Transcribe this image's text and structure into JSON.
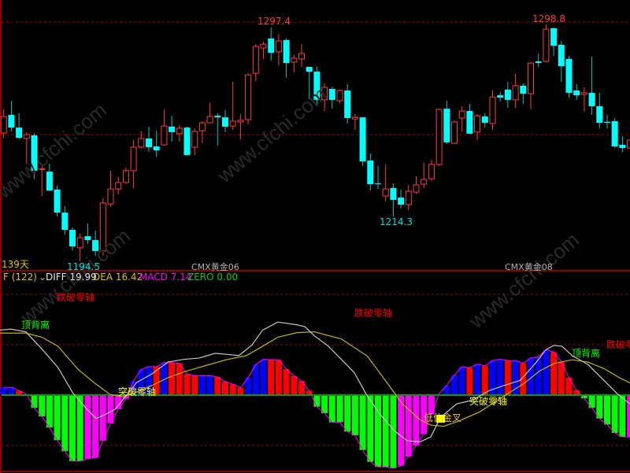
{
  "watermark": "www.cfchi.com",
  "price_panel": {
    "days_label": "139天",
    "contract_labels": [
      "CMX黄金06",
      "CMX黄金08"
    ],
    "extreme_labels": [
      {
        "text": "1297.4",
        "candle": 35,
        "kind": "high"
      },
      {
        "text": "1298.8",
        "candle": 71,
        "kind": "high"
      },
      {
        "text": "1214.3",
        "candle": 51,
        "kind": "low"
      },
      {
        "text": "1194.5",
        "candle": 10,
        "kind": "low"
      }
    ]
  },
  "indicator_header": {
    "name": "F (122)",
    "diff": "DIFF 19.99",
    "dea": "DEA 16.42",
    "macd": "MACD 7.14",
    "zero": "ZERO 0.00"
  },
  "annotations": {
    "break_down_zero": "跌破零轴",
    "top_divergence": "顶背离",
    "break_up_zero": "突破零轴",
    "low_golden_cross": "低位金叉"
  },
  "colors": {
    "up": "#ff3b3b",
    "down": "#00ffff",
    "hist_red": "#ff0000",
    "hist_blue": "#0000ff",
    "hist_green": "#00ff00",
    "hist_magenta": "#ff00ff",
    "diff": "#c8c8c8",
    "dea": "#c8b400",
    "zero": "#00a000",
    "grid": "#a00000",
    "frame": "#8b0000"
  },
  "chart_data": [
    {
      "type": "candlestick",
      "ohlc_order": [
        "open",
        "high",
        "low",
        "close"
      ],
      "ylim": [
        1190.8,
        1309.5
      ],
      "grid_lines": [
        1299.8,
        1250.3
      ],
      "candles": [
        [
          1251.0,
          1261.4,
          1248.9,
          1258.3
        ],
        [
          1259.0,
          1265.2,
          1251.7,
          1253.4
        ],
        [
          1253.4,
          1259.7,
          1248.2,
          1248.9
        ],
        [
          1248.6,
          1251.4,
          1237.5,
          1250.3
        ],
        [
          1250.0,
          1251.0,
          1230.9,
          1234.4
        ],
        [
          1235.1,
          1236.8,
          1223.3,
          1235.3
        ],
        [
          1234.0,
          1237.5,
          1225.4,
          1225.7
        ],
        [
          1226.1,
          1227.8,
          1214.3,
          1216.0
        ],
        [
          1216.0,
          1218.8,
          1206.3,
          1208.4
        ],
        [
          1208.4,
          1209.5,
          1199.4,
          1201.1
        ],
        [
          1200.5,
          1206.7,
          1194.5,
          1205.0
        ],
        [
          1205.6,
          1211.2,
          1202.2,
          1203.9
        ],
        [
          1203.9,
          1208.1,
          1197.0,
          1199.1
        ],
        [
          1199.1,
          1222.3,
          1197.0,
          1220.2
        ],
        [
          1219.8,
          1234.4,
          1218.5,
          1226.4
        ],
        [
          1226.4,
          1231.6,
          1224.0,
          1229.2
        ],
        [
          1229.2,
          1235.8,
          1228.8,
          1234.4
        ],
        [
          1234.4,
          1247.9,
          1226.8,
          1244.8
        ],
        [
          1244.8,
          1251.7,
          1244.1,
          1248.6
        ],
        [
          1248.6,
          1253.8,
          1242.7,
          1244.8
        ],
        [
          1245.1,
          1252.0,
          1240.6,
          1243.4
        ],
        [
          1245.8,
          1261.4,
          1245.5,
          1254.1
        ],
        [
          1253.8,
          1258.6,
          1247.2,
          1251.4
        ],
        [
          1250.7,
          1254.5,
          1247.2,
          1253.1
        ],
        [
          1253.4,
          1253.8,
          1241.3,
          1241.3
        ],
        [
          1244.8,
          1253.1,
          1241.3,
          1251.7
        ],
        [
          1252.0,
          1256.2,
          1246.5,
          1255.5
        ],
        [
          1255.5,
          1264.2,
          1255.5,
          1258.3
        ],
        [
          1258.6,
          1259.7,
          1245.5,
          1257.9
        ],
        [
          1257.9,
          1261.1,
          1251.4,
          1253.8
        ],
        [
          1254.1,
          1273.5,
          1252.4,
          1256.2
        ],
        [
          1255.9,
          1259.3,
          1248.2,
          1256.6
        ],
        [
          1256.9,
          1277.3,
          1254.8,
          1276.6
        ],
        [
          1277.3,
          1290.1,
          1273.9,
          1289.1
        ],
        [
          1288.4,
          1291.2,
          1283.6,
          1290.1
        ],
        [
          1292.6,
          1297.4,
          1282.9,
          1286.3
        ],
        [
          1286.7,
          1294.6,
          1280.8,
          1291.5
        ],
        [
          1291.9,
          1292.6,
          1275.3,
          1281.8
        ],
        [
          1282.2,
          1285.3,
          1277.7,
          1283.9
        ],
        [
          1283.6,
          1290.1,
          1280.1,
          1286.0
        ],
        [
          1280.1,
          1280.1,
          1265.9,
          1278.0
        ],
        [
          1278.0,
          1280.1,
          1262.8,
          1265.6
        ],
        [
          1265.6,
          1272.8,
          1260.7,
          1271.1
        ],
        [
          1270.4,
          1271.4,
          1261.7,
          1265.6
        ],
        [
          1265.2,
          1270.1,
          1264.2,
          1269.7
        ],
        [
          1269.7,
          1272.5,
          1255.2,
          1257.6
        ],
        [
          1257.2,
          1259.3,
          1252.4,
          1257.9
        ],
        [
          1257.9,
          1257.9,
          1236.5,
          1238.5
        ],
        [
          1238.9,
          1242.0,
          1225.7,
          1228.5
        ],
        [
          1228.8,
          1236.5,
          1226.4,
          1228.5
        ],
        [
          1223.3,
          1237.2,
          1220.9,
          1226.4
        ],
        [
          1226.8,
          1228.8,
          1214.3,
          1221.6
        ],
        [
          1222.6,
          1226.1,
          1217.8,
          1219.5
        ],
        [
          1219.5,
          1228.2,
          1217.1,
          1225.4
        ],
        [
          1225.0,
          1232.0,
          1224.3,
          1228.2
        ],
        [
          1228.5,
          1237.9,
          1226.8,
          1230.6
        ],
        [
          1230.9,
          1239.2,
          1229.9,
          1237.2
        ],
        [
          1237.2,
          1261.7,
          1236.5,
          1261.4
        ],
        [
          1261.7,
          1265.2,
          1246.2,
          1246.9
        ],
        [
          1246.5,
          1256.6,
          1246.2,
          1255.9
        ],
        [
          1257.6,
          1262.8,
          1251.7,
          1260.7
        ],
        [
          1260.7,
          1263.8,
          1250.7,
          1250.7
        ],
        [
          1251.4,
          1259.3,
          1247.9,
          1258.6
        ],
        [
          1258.3,
          1259.7,
          1253.4,
          1255.5
        ],
        [
          1255.2,
          1269.7,
          1252.4,
          1266.9
        ],
        [
          1267.6,
          1269.0,
          1264.9,
          1266.6
        ],
        [
          1270.1,
          1273.5,
          1262.1,
          1265.6
        ],
        [
          1265.6,
          1277.0,
          1262.1,
          1271.8
        ],
        [
          1271.8,
          1272.8,
          1263.8,
          1268.3
        ],
        [
          1268.3,
          1282.2,
          1261.4,
          1281.8
        ],
        [
          1282.5,
          1286.0,
          1280.1,
          1281.8
        ],
        [
          1282.5,
          1298.8,
          1282.2,
          1296.7
        ],
        [
          1297.1,
          1297.4,
          1284.9,
          1289.4
        ],
        [
          1289.8,
          1291.5,
          1273.5,
          1280.4
        ],
        [
          1283.6,
          1284.9,
          1266.6,
          1268.7
        ],
        [
          1269.7,
          1272.5,
          1265.6,
          1267.6
        ],
        [
          1268.0,
          1271.1,
          1260.4,
          1268.7
        ],
        [
          1268.7,
          1284.6,
          1259.0,
          1262.8
        ],
        [
          1262.8,
          1268.7,
          1253.1,
          1255.5
        ],
        [
          1255.9,
          1259.0,
          1253.1,
          1255.5
        ],
        [
          1256.2,
          1257.6,
          1244.4,
          1245.1
        ],
        [
          1245.8,
          1249.6,
          1242.7,
          1244.4
        ],
        [
          1244.4,
          1247.9,
          1244.1,
          1247.9
        ]
      ]
    },
    {
      "type": "bar+line",
      "ylim": [
        -30,
        49
      ],
      "grid_lines": [
        40,
        20,
        -20
      ],
      "histogram": [
        3.1,
        3.1,
        1.7,
        0.3,
        -5.1,
        -8.5,
        -12.9,
        -17.9,
        -22.3,
        -26.2,
        -26.2,
        -25.2,
        -24.9,
        -18.1,
        -11.2,
        -5.6,
        -1.5,
        5.6,
        10.2,
        11.3,
        11.3,
        12.9,
        12.9,
        12.6,
        8.4,
        7.7,
        7.7,
        7.7,
        7.2,
        5.3,
        4.3,
        2.9,
        6.9,
        12.1,
        14.2,
        14.0,
        14.0,
        10.3,
        7.6,
        5.6,
        1.7,
        -4.6,
        -7.2,
        -10.8,
        -10.8,
        -14.5,
        -16.0,
        -21.8,
        -26.5,
        -28.5,
        -28.5,
        -29.1,
        -28.0,
        -24.4,
        -20.0,
        -15.5,
        -7.7,
        0.5,
        3.8,
        7.9,
        11.3,
        10.8,
        12.3,
        11.6,
        13.7,
        14.2,
        13.7,
        13.7,
        12.6,
        14.7,
        15.2,
        18.1,
        17.1,
        13.3,
        6.9,
        1.9,
        -1.3,
        -5.1,
        -9.3,
        -11.7,
        -15.0,
        -16.6,
        -16.6
      ],
      "histogram_colors": "BBRRGGGGGGGMMMMMMBBBRBRRRRBBRRRRBBBRRRRRRGGGGGGGGGGGMMMMMBBBBRBRBBRBRBBBRRRRGGGGGGM",
      "series": [
        {
          "name": "DIFF",
          "points": [
            [
              -0.5,
              25.8
            ],
            [
              0.9,
              26.2
            ],
            [
              2.9,
              25.1
            ],
            [
              5.0,
              18.3
            ],
            [
              7.1,
              11.0
            ],
            [
              9.1,
              0.6
            ],
            [
              10.9,
              -5.6
            ],
            [
              12.1,
              -9.3
            ],
            [
              13.3,
              -7.7
            ],
            [
              14.6,
              -5.6
            ],
            [
              15.7,
              -1.5
            ],
            [
              17.4,
              5.0
            ],
            [
              19.4,
              8.4
            ],
            [
              21.5,
              13.1
            ],
            [
              23.6,
              14.2
            ],
            [
              25.6,
              14.7
            ],
            [
              27.7,
              16.6
            ],
            [
              29.8,
              16.0
            ],
            [
              30.8,
              15.7
            ],
            [
              32.5,
              19.9
            ],
            [
              33.9,
              25.8
            ],
            [
              35.9,
              29.0
            ],
            [
              38.4,
              27.9
            ],
            [
              39.4,
              27.2
            ],
            [
              40.7,
              23.5
            ],
            [
              42.5,
              19.4
            ],
            [
              44.2,
              14.2
            ],
            [
              45.9,
              8.9
            ],
            [
              47.6,
              -0.4
            ],
            [
              49.3,
              -7.7
            ],
            [
              51.1,
              -14.0
            ],
            [
              52.8,
              -18.1
            ],
            [
              54.5,
              -18.6
            ],
            [
              55.9,
              -16.6
            ],
            [
              57.2,
              -8.8
            ],
            [
              59.3,
              -3.5
            ],
            [
              61.4,
              -2.0
            ],
            [
              63.5,
              1.7
            ],
            [
              65.5,
              3.8
            ],
            [
              67.6,
              5.8
            ],
            [
              69.6,
              12.6
            ],
            [
              71.0,
              18.1
            ],
            [
              72.0,
              19.7
            ],
            [
              73.1,
              19.4
            ],
            [
              74.4,
              15.7
            ],
            [
              76.5,
              12.1
            ],
            [
              78.6,
              5.8
            ],
            [
              80.3,
              0.6
            ],
            [
              82.0,
              -3.5
            ]
          ]
        },
        {
          "name": "DEA",
          "points": [
            [
              -0.5,
              24.6
            ],
            [
              2.9,
              24.6
            ],
            [
              5.0,
              23.0
            ],
            [
              7.1,
              19.4
            ],
            [
              9.8,
              10.0
            ],
            [
              11.9,
              4.8
            ],
            [
              14.0,
              0.1
            ],
            [
              15.7,
              -0.6
            ],
            [
              17.4,
              1.2
            ],
            [
              19.4,
              3.8
            ],
            [
              21.5,
              6.9
            ],
            [
              23.6,
              9.2
            ],
            [
              26.3,
              11.6
            ],
            [
              29.1,
              14.0
            ],
            [
              31.8,
              15.7
            ],
            [
              33.9,
              19.4
            ],
            [
              35.9,
              23.0
            ],
            [
              38.4,
              24.8
            ],
            [
              40.7,
              25.1
            ],
            [
              44.2,
              22.3
            ],
            [
              47.6,
              15.5
            ],
            [
              50.2,
              4.8
            ],
            [
              52.2,
              -3.5
            ],
            [
              54.5,
              -9.8
            ],
            [
              55.9,
              -11.9
            ],
            [
              57.6,
              -12.4
            ],
            [
              59.6,
              -10.3
            ],
            [
              62.3,
              -6.7
            ],
            [
              65.5,
              -0.4
            ],
            [
              68.2,
              4.8
            ],
            [
              70.1,
              9.5
            ],
            [
              72.1,
              12.6
            ],
            [
              74.4,
              14.0
            ],
            [
              76.5,
              13.1
            ],
            [
              78.6,
              10.5
            ],
            [
              80.6,
              6.9
            ],
            [
              82.0,
              4.8
            ]
          ]
        }
      ]
    }
  ]
}
